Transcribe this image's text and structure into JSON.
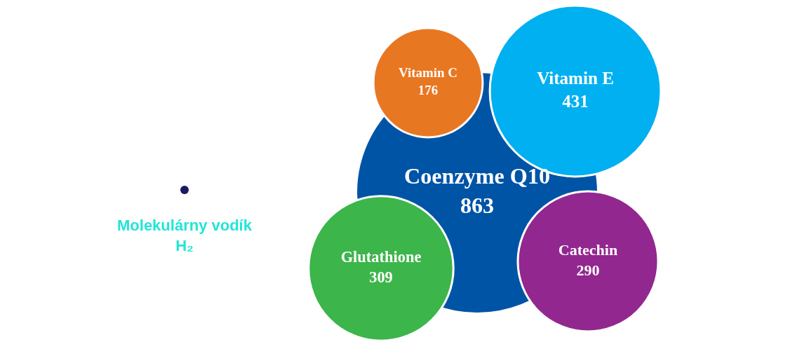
{
  "chart_data": {
    "type": "other",
    "categories": [
      "Coenzyme Q10",
      "Vitamin E",
      "Vitamin C",
      "Glutathione",
      "Catechin",
      "Molekulárny vodík H₂"
    ],
    "values": [
      863,
      431,
      176,
      309,
      290,
      null
    ],
    "data_labels": true,
    "colors": [
      "#0054a6",
      "#00b0f0",
      "#e87722",
      "#3cb54a",
      "#92278f",
      "#1a1a5e"
    ]
  }
}
